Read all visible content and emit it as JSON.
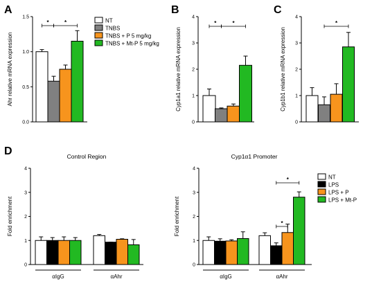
{
  "colors": {
    "NT": "#ffffff",
    "TNBS": "#808080",
    "TNBS_P": "#f7941d",
    "TNBS_MtP": "#22b922",
    "LPS": "#000000",
    "LPS_P": "#f7941d",
    "LPS_MtP": "#22b922",
    "sig_star": "#000000"
  },
  "chart_data": [
    {
      "type": "bar",
      "panel": "A",
      "ylabel": "Ahr relative mRNA expression",
      "ylim": [
        0,
        1.5
      ],
      "yticks": [
        "0.0",
        "0.5",
        "1.0",
        "1.5"
      ],
      "categories": [
        "NT",
        "TNBS",
        "TNBS + P 5 mg/kg",
        "TNBS + Mt-P 5 mg/kg"
      ],
      "values": [
        1.0,
        0.58,
        0.75,
        1.15
      ],
      "errors": [
        0.03,
        0.07,
        0.06,
        0.15
      ],
      "significance": [
        {
          "from": 0,
          "to": 1,
          "label": "*"
        },
        {
          "from": 1,
          "to": 3,
          "label": "*"
        }
      ]
    },
    {
      "type": "bar",
      "panel": "B",
      "ylabel": "Cyp1a1 relative mRNA expression",
      "ylim": [
        0,
        4
      ],
      "yticks": [
        "0",
        "1",
        "2",
        "3",
        "4"
      ],
      "categories": [
        "NT",
        "TNBS",
        "TNBS + P 5 mg/kg",
        "TNBS + Mt-P 5 mg/kg"
      ],
      "values": [
        1.0,
        0.5,
        0.6,
        2.15
      ],
      "errors": [
        0.25,
        0.03,
        0.08,
        0.35
      ],
      "significance": [
        {
          "from": 0,
          "to": 1,
          "label": "*"
        },
        {
          "from": 1,
          "to": 3,
          "label": "*"
        }
      ]
    },
    {
      "type": "bar",
      "panel": "C",
      "ylabel": "Cyp1b1 relative mRNA expression",
      "ylim": [
        0,
        4
      ],
      "yticks": [
        "0",
        "1",
        "2",
        "3",
        "4"
      ],
      "categories": [
        "NT",
        "TNBS",
        "TNBS + P 5 mg/kg",
        "TNBS + Mt-P 5 mg/kg"
      ],
      "values": [
        1.0,
        0.65,
        1.05,
        2.85
      ],
      "errors": [
        0.3,
        0.3,
        0.4,
        0.55
      ],
      "significance": [
        {
          "from": 1,
          "to": 3,
          "label": "*"
        }
      ]
    },
    {
      "type": "bar",
      "panel": "D",
      "title": "Control Region",
      "ylabel": "Fold enrichment",
      "ylim": [
        0,
        4
      ],
      "yticks": [
        "0",
        "1",
        "2",
        "3",
        "4"
      ],
      "categories": [
        "αIgG",
        "αAhr"
      ],
      "series": [
        {
          "name": "NT",
          "values": [
            1.0,
            1.2
          ],
          "errors": [
            0.15,
            0.05
          ]
        },
        {
          "name": "LPS",
          "values": [
            1.0,
            0.93
          ],
          "errors": [
            0.12,
            0.0
          ]
        },
        {
          "name": "LPS + P",
          "values": [
            1.0,
            1.05
          ],
          "errors": [
            0.15,
            0.02
          ]
        },
        {
          "name": "LPS + Mt-P",
          "values": [
            1.0,
            0.82
          ],
          "errors": [
            0.12,
            0.22
          ]
        }
      ],
      "significance": []
    },
    {
      "type": "bar",
      "title": "Cyp1α1 Promoter",
      "ylabel": "Fold enrichment",
      "ylim": [
        0,
        4
      ],
      "yticks": [
        "0",
        "1",
        "2",
        "3",
        "4"
      ],
      "categories": [
        "αIgG",
        "αAhr"
      ],
      "series": [
        {
          "name": "NT",
          "values": [
            1.0,
            1.2
          ],
          "errors": [
            0.15,
            0.12
          ]
        },
        {
          "name": "LPS",
          "values": [
            0.97,
            0.78
          ],
          "errors": [
            0.1,
            0.12
          ]
        },
        {
          "name": "LPS + P",
          "values": [
            0.98,
            1.33
          ],
          "errors": [
            0.05,
            0.35
          ]
        },
        {
          "name": "LPS + Mt-P",
          "values": [
            1.08,
            2.8
          ],
          "errors": [
            0.28,
            0.22
          ]
        }
      ],
      "significance": [
        {
          "group": 1,
          "from": 1,
          "to": 2,
          "label": "*"
        },
        {
          "group": 1,
          "from": 1,
          "to": 3,
          "label": "*"
        }
      ]
    }
  ],
  "legends": {
    "top": [
      "NT",
      "TNBS",
      "TNBS + P 5 mg/kg",
      "TNBS + Mt-P 5 mg/kg"
    ],
    "bottom": [
      "NT",
      "LPS",
      "LPS + P",
      "LPS + Mt-P"
    ]
  }
}
